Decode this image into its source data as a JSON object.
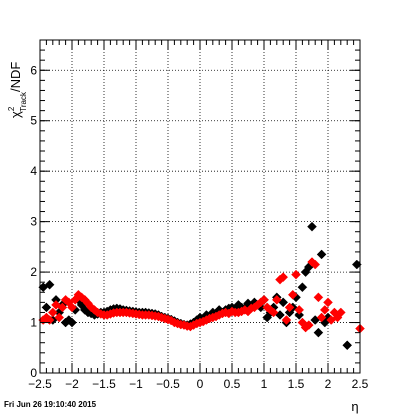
{
  "footer": {
    "timestamp": "Fri Jun 26 19:10:40 2015"
  },
  "chart_data": {
    "type": "scatter",
    "title": "",
    "xlabel": "η",
    "ylabel": {
      "main": "χ",
      "sup": "2",
      "sub": "Track",
      "suffix": "/NDF"
    },
    "xlim": [
      -2.5,
      2.5
    ],
    "ylim": [
      0,
      6.6
    ],
    "xticks": [
      "−2.5",
      "−2",
      "−1.5",
      "−1",
      "−0.5",
      "0",
      "0.5",
      "1",
      "1.5",
      "2",
      "2.5"
    ],
    "xtick_values": [
      -2.5,
      -2,
      -1.5,
      -1,
      -0.5,
      0,
      0.5,
      1,
      1.5,
      2,
      2.5
    ],
    "yticks": [
      "0",
      "1",
      "2",
      "3",
      "4",
      "5",
      "6"
    ],
    "ytick_values": [
      0,
      1,
      2,
      3,
      4,
      5,
      6
    ],
    "grid": true,
    "series": [
      {
        "color": "#000000",
        "x": [
          -2.45,
          -2.4,
          -2.35,
          -2.3,
          -2.25,
          -2.2,
          -2.15,
          -2.1,
          -2.05,
          -2.0,
          -1.95,
          -1.9,
          -1.85,
          -1.8,
          -1.75,
          -1.7,
          -1.65,
          -1.6,
          -1.55,
          -1.5,
          -1.45,
          -1.4,
          -1.35,
          -1.3,
          -1.25,
          -1.2,
          -1.15,
          -1.1,
          -1.05,
          -1.0,
          -0.95,
          -0.9,
          -0.85,
          -0.8,
          -0.75,
          -0.7,
          -0.65,
          -0.6,
          -0.55,
          -0.5,
          -0.45,
          -0.4,
          -0.35,
          -0.3,
          -0.25,
          -0.2,
          -0.15,
          -0.1,
          -0.05,
          0.0,
          0.05,
          0.1,
          0.15,
          0.2,
          0.25,
          0.3,
          0.35,
          0.4,
          0.45,
          0.5,
          0.55,
          0.6,
          0.65,
          0.7,
          0.75,
          0.8,
          0.85,
          0.9,
          0.95,
          1.0,
          1.05,
          1.1,
          1.15,
          1.2,
          1.25,
          1.3,
          1.35,
          1.4,
          1.45,
          1.5,
          1.55,
          1.6,
          1.65,
          1.7,
          1.75,
          1.8,
          1.85,
          1.9,
          1.95,
          2.0,
          2.3,
          2.45
        ],
        "y": [
          1.7,
          1.3,
          1.75,
          1.05,
          1.45,
          1.2,
          1.35,
          1.0,
          1.05,
          1.0,
          1.25,
          1.45,
          1.35,
          1.25,
          1.2,
          1.18,
          1.15,
          1.17,
          1.2,
          1.2,
          1.22,
          1.25,
          1.27,
          1.28,
          1.27,
          1.25,
          1.24,
          1.23,
          1.22,
          1.21,
          1.2,
          1.2,
          1.2,
          1.19,
          1.18,
          1.17,
          1.15,
          1.12,
          1.1,
          1.08,
          1.06,
          1.03,
          1.0,
          0.98,
          0.96,
          0.95,
          0.97,
          1.0,
          1.05,
          1.1,
          1.08,
          1.15,
          1.12,
          1.2,
          1.18,
          1.25,
          1.2,
          1.25,
          1.28,
          1.3,
          1.25,
          1.35,
          1.3,
          1.28,
          1.38,
          1.32,
          1.4,
          1.35,
          1.3,
          1.45,
          1.1,
          1.2,
          1.3,
          1.5,
          1.15,
          1.4,
          1.0,
          1.2,
          1.3,
          1.5,
          1.15,
          1.7,
          2.0,
          2.1,
          2.9,
          1.05,
          0.8,
          2.35,
          1.0,
          1.1,
          0.55,
          2.15
        ]
      },
      {
        "color": "#ff0000",
        "x": [
          -2.45,
          -2.4,
          -2.35,
          -2.3,
          -2.25,
          -2.2,
          -2.15,
          -2.1,
          -2.05,
          -2.0,
          -1.95,
          -1.9,
          -1.85,
          -1.8,
          -1.75,
          -1.7,
          -1.65,
          -1.6,
          -1.55,
          -1.5,
          -1.45,
          -1.4,
          -1.35,
          -1.3,
          -1.25,
          -1.2,
          -1.15,
          -1.1,
          -1.05,
          -1.0,
          -0.95,
          -0.9,
          -0.85,
          -0.8,
          -0.75,
          -0.7,
          -0.65,
          -0.6,
          -0.55,
          -0.5,
          -0.45,
          -0.4,
          -0.35,
          -0.3,
          -0.25,
          -0.2,
          -0.15,
          -0.1,
          -0.05,
          0.0,
          0.05,
          0.1,
          0.15,
          0.2,
          0.25,
          0.3,
          0.35,
          0.4,
          0.45,
          0.5,
          0.55,
          0.6,
          0.65,
          0.7,
          0.75,
          0.8,
          0.85,
          0.9,
          0.95,
          1.0,
          1.05,
          1.1,
          1.15,
          1.2,
          1.25,
          1.3,
          1.35,
          1.4,
          1.45,
          1.5,
          1.55,
          1.6,
          1.65,
          1.7,
          1.75,
          1.8,
          1.85,
          1.9,
          1.95,
          2.0,
          2.05,
          2.1,
          2.15,
          2.2,
          2.5
        ],
        "y": [
          1.05,
          1.1,
          1.05,
          1.2,
          1.35,
          1.1,
          1.3,
          1.45,
          1.4,
          1.3,
          1.45,
          1.55,
          1.5,
          1.45,
          1.38,
          1.3,
          1.25,
          1.2,
          1.17,
          1.15,
          1.15,
          1.17,
          1.19,
          1.2,
          1.2,
          1.2,
          1.2,
          1.19,
          1.18,
          1.17,
          1.16,
          1.15,
          1.15,
          1.15,
          1.14,
          1.13,
          1.12,
          1.1,
          1.08,
          1.06,
          1.04,
          1.0,
          0.98,
          0.96,
          0.95,
          0.93,
          0.92,
          0.95,
          0.98,
          1.0,
          1.02,
          1.05,
          1.08,
          1.1,
          1.12,
          1.15,
          1.18,
          1.2,
          1.18,
          1.22,
          1.2,
          1.2,
          1.22,
          1.25,
          1.22,
          1.28,
          1.3,
          1.35,
          1.4,
          1.45,
          1.3,
          1.25,
          1.2,
          1.45,
          1.85,
          1.9,
          1.05,
          1.3,
          1.55,
          1.95,
          1.25,
          1.0,
          0.9,
          0.95,
          2.2,
          2.15,
          1.5,
          1.1,
          1.25,
          1.4,
          1.05,
          1.2,
          1.1,
          1.2,
          0.88
        ]
      }
    ]
  }
}
